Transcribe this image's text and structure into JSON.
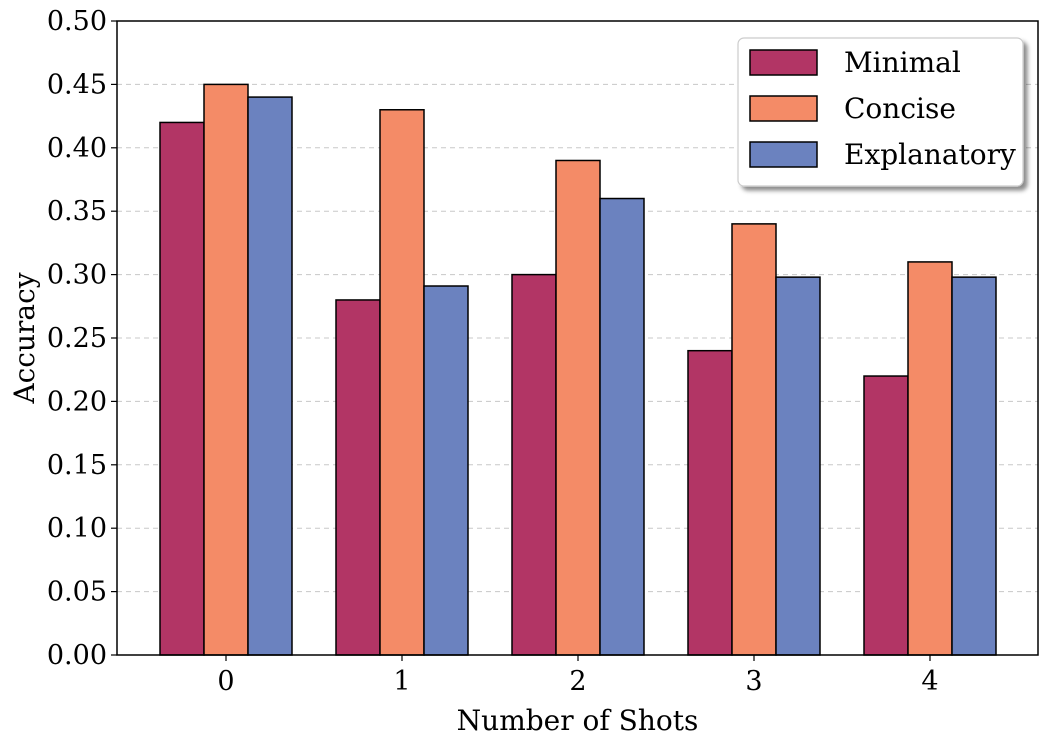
{
  "chart_data": {
    "type": "bar",
    "xlabel": "Number of Shots",
    "ylabel": "Accuracy",
    "categories": [
      "0",
      "1",
      "2",
      "3",
      "4"
    ],
    "ylim": [
      0.0,
      0.5
    ],
    "yticks": [
      "0.00",
      "0.05",
      "0.10",
      "0.15",
      "0.20",
      "0.25",
      "0.30",
      "0.35",
      "0.40",
      "0.45",
      "0.50"
    ],
    "grid": "horizontal dashed",
    "legend_position": "top-right",
    "series": [
      {
        "name": "Minimal",
        "color": "#b23565",
        "values": [
          0.42,
          0.28,
          0.3,
          0.24,
          0.22
        ]
      },
      {
        "name": "Concise",
        "color": "#f48b67",
        "values": [
          0.45,
          0.43,
          0.39,
          0.34,
          0.31
        ]
      },
      {
        "name": "Explanatory",
        "color": "#6b82bf",
        "values": [
          0.44,
          0.291,
          0.36,
          0.298,
          0.298
        ]
      }
    ]
  }
}
